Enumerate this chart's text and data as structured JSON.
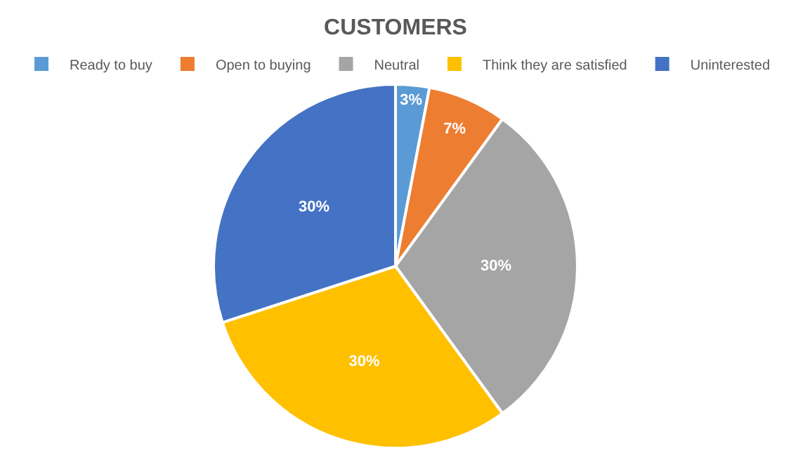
{
  "chart_data": {
    "type": "pie",
    "title": "CUSTOMERS",
    "categories": [
      "Ready to buy",
      "Open to buying",
      "Neutral",
      "Think they are satisfied",
      "Uninterested"
    ],
    "values": [
      3,
      7,
      30,
      30,
      30
    ],
    "colors": [
      "#5b9bd5",
      "#ed7d31",
      "#a5a5a5",
      "#ffc000",
      "#4472c4"
    ],
    "value_labels": [
      "3%",
      "7%",
      "30%",
      "30%",
      "30%"
    ],
    "legend": "top"
  }
}
